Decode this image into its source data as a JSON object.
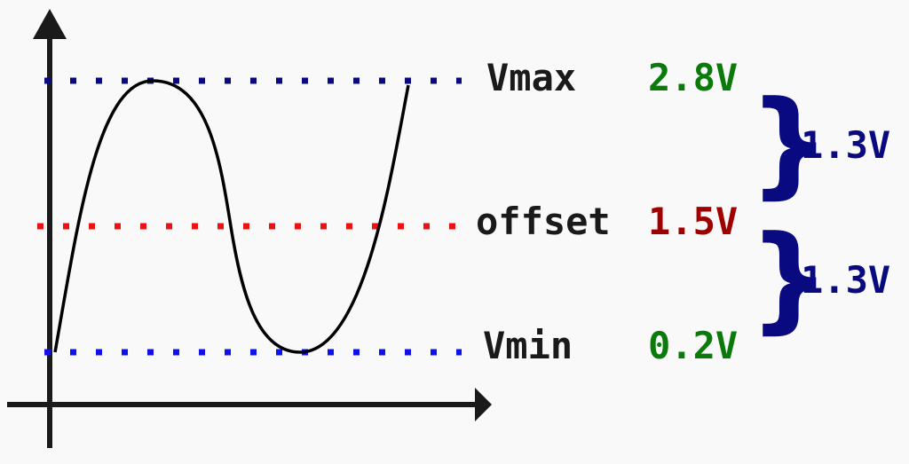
{
  "colors": {
    "background": "#f9f9f9",
    "axis": "#1a1a1a",
    "curve": "#000000",
    "vmax_line": "#0a0a80",
    "offset_line": "#ee1111",
    "vmin_line": "#1010ee",
    "label_text": "#1a1a1a",
    "value_green": "#0a7a0a",
    "value_red": "#a00000",
    "amplitude_blue": "#0a0a80"
  },
  "levels": {
    "vmax": {
      "label": "Vmax",
      "value": "2.8V"
    },
    "offset": {
      "label": "offset",
      "value": "1.5V"
    },
    "vmin": {
      "label": "Vmin",
      "value": "0.2V"
    }
  },
  "amplitudes": {
    "upper": {
      "brace": "}",
      "value": "1.3V"
    },
    "lower": {
      "brace": "}",
      "value": "1.3V"
    }
  }
}
